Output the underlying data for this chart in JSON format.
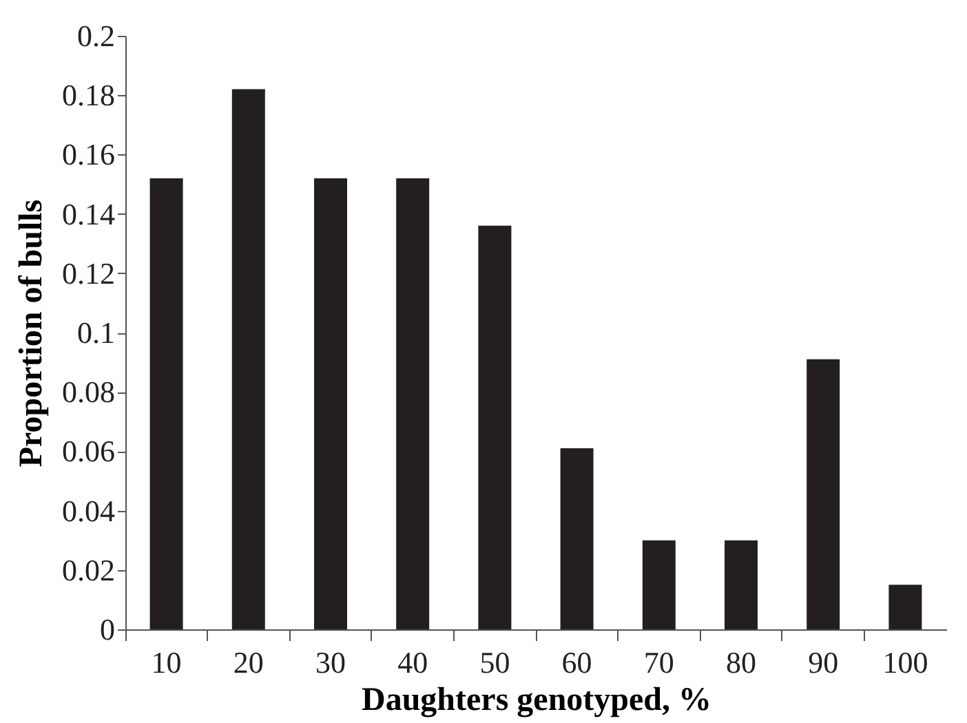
{
  "chart_data": {
    "type": "bar",
    "xlabel": "Daughters genotyped, %",
    "ylabel": "Proportion of bulls",
    "categories": [
      "10",
      "20",
      "30",
      "40",
      "50",
      "60",
      "70",
      "80",
      "90",
      "100"
    ],
    "values": [
      0.152,
      0.182,
      0.152,
      0.152,
      0.136,
      0.061,
      0.03,
      0.03,
      0.091,
      0.015
    ],
    "color": "#231f20",
    "ylim": [
      0,
      0.2
    ],
    "yticks": [
      0,
      0.02,
      0.04,
      0.06,
      0.08,
      0.1,
      0.12,
      0.14,
      0.16,
      0.18,
      0.2
    ],
    "grid": false
  }
}
